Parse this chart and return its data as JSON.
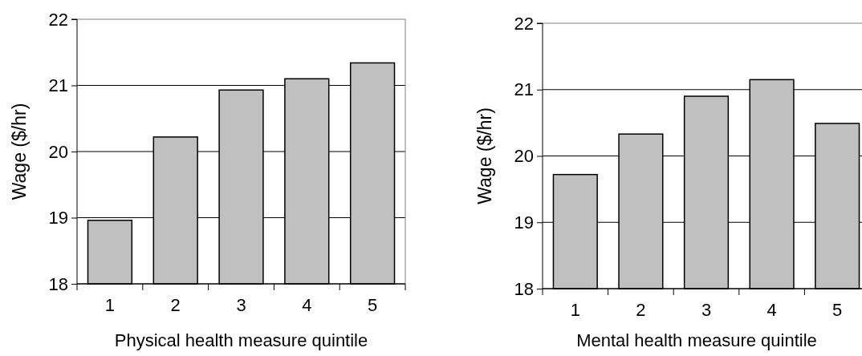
{
  "chart_data": [
    {
      "type": "bar",
      "categories": [
        "1",
        "2",
        "3",
        "4",
        "5"
      ],
      "values": [
        18.96,
        20.22,
        20.93,
        21.1,
        21.34
      ],
      "color": "#c0c0c0",
      "xlabel": "Physical health measure quintile",
      "ylabel": "Wage ($/hr)",
      "ylim": [
        18,
        22
      ],
      "yticks": [
        18,
        19,
        20,
        21,
        22
      ],
      "grid": "y"
    },
    {
      "type": "bar",
      "categories": [
        "1",
        "2",
        "3",
        "4",
        "5"
      ],
      "values": [
        19.72,
        20.33,
        20.9,
        21.15,
        20.49
      ],
      "color": "#c0c0c0",
      "xlabel": "Mental health measure quintile",
      "ylabel": "Wage ($/hr)",
      "ylim": [
        18,
        22
      ],
      "yticks": [
        18,
        19,
        20,
        21,
        22
      ],
      "grid": "y"
    }
  ]
}
